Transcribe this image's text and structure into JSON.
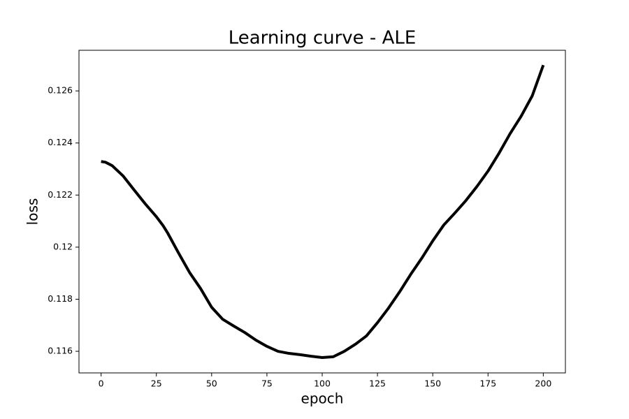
{
  "chart_data": {
    "type": "line",
    "title": "Learning curve - ALE",
    "x_label": "epoch",
    "y_label": "loss",
    "x": [
      0,
      2,
      5,
      10,
      15,
      20,
      25,
      28,
      30,
      35,
      40,
      45,
      50,
      55,
      60,
      65,
      70,
      75,
      80,
      85,
      90,
      95,
      100,
      105,
      110,
      115,
      120,
      125,
      130,
      135,
      140,
      145,
      150,
      155,
      160,
      165,
      170,
      175,
      180,
      185,
      190,
      195,
      200
    ],
    "series": [
      {
        "color": "#000000",
        "values": [
          0.12329,
          0.12326,
          0.12313,
          0.12273,
          0.12219,
          0.12166,
          0.12117,
          0.12083,
          0.12056,
          0.11978,
          0.11903,
          0.11841,
          0.11769,
          0.11723,
          0.11697,
          0.11672,
          0.11643,
          0.11619,
          0.116,
          0.11592,
          0.11587,
          0.11581,
          0.11576,
          0.11579,
          0.116,
          0.11627,
          0.11659,
          0.1171,
          0.11766,
          0.11828,
          0.11895,
          0.11957,
          0.12024,
          0.12085,
          0.12131,
          0.12179,
          0.12233,
          0.12292,
          0.12361,
          0.12436,
          0.12503,
          0.12581,
          0.12699
        ]
      }
    ],
    "xlim": [
      -10,
      210
    ],
    "ylim": [
      0.11517,
      0.12756
    ],
    "xticks": [
      0,
      25,
      50,
      75,
      100,
      125,
      150,
      175,
      200
    ],
    "yticks": [
      0.116,
      0.118,
      0.12,
      0.122,
      0.124,
      0.126
    ]
  }
}
